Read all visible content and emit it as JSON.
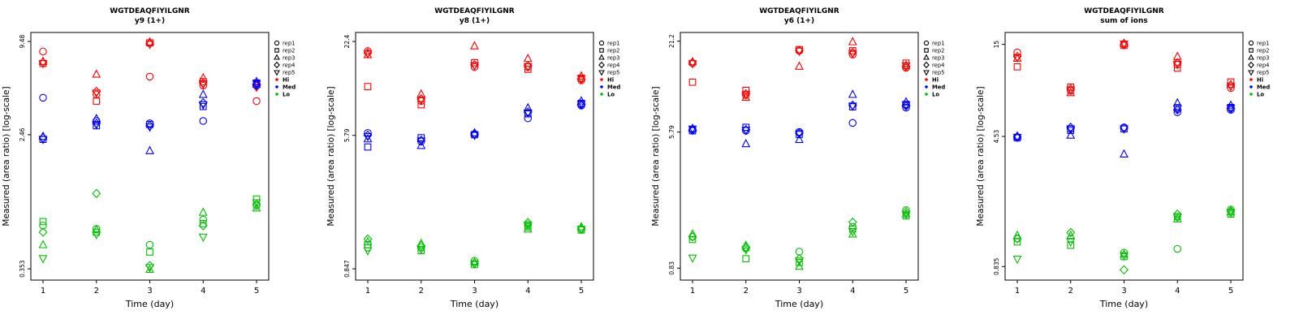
{
  "legend": {
    "rep_labels": [
      "rep1",
      "rep2",
      "rep3",
      "rep4",
      "rep5"
    ],
    "rep_marker_icons": [
      "circle-icon",
      "square-icon",
      "triangle-up-icon",
      "diamond-icon",
      "triangle-down-icon"
    ],
    "group_labels": [
      "Hi",
      "Med",
      "Lo"
    ],
    "group_colors": [
      "#ff0000",
      "#0000ff",
      "#00c000"
    ]
  },
  "colors": {
    "hi": "#ff0000",
    "med": "#0000ff",
    "lo": "#00c000",
    "axis": "#000000",
    "background": "#ffffff"
  },
  "chart_data": [
    {
      "type": "scatter",
      "title": "WGTDEAQFIYILGNR",
      "subtitle": "y9 (1+)",
      "xlabel": "Time (day)",
      "ylabel": "Measured (area ratio) [log-scale]",
      "x_ticks": [
        1,
        2,
        3,
        4,
        5
      ],
      "y_ticks": [
        0.353,
        2.46,
        9.48
      ],
      "ylim": [
        0.3,
        10.8
      ],
      "log_y": true,
      "legend_position": "right",
      "grid": false,
      "series": [
        {
          "name": "Hi",
          "color": "#ff0000",
          "values_by_day": [
            [
              8.2,
              6.9,
              7.1,
              7.0,
              6.9
            ],
            [
              4.4,
              4.0,
              5.9,
              4.6,
              4.5
            ],
            [
              5.7,
              9.3,
              9.4,
              9.2,
              9.1
            ],
            [
              5.0,
              5.3,
              5.6,
              5.2,
              5.1
            ],
            [
              4.0,
              5.2,
              5.1,
              5.0,
              4.9
            ]
          ]
        },
        {
          "name": "Med",
          "color": "#0000ff",
          "values_by_day": [
            [
              4.2,
              2.3,
              2.4,
              2.35,
              2.3
            ],
            [
              3.0,
              2.8,
              3.1,
              2.9,
              2.85
            ],
            [
              2.9,
              2.85,
              1.95,
              2.8,
              2.75
            ],
            [
              3.0,
              3.7,
              4.4,
              3.9,
              3.8
            ],
            [
              5.0,
              5.2,
              5.3,
              5.1,
              5.15
            ]
          ]
        },
        {
          "name": "Lo",
          "color": "#00c000",
          "values_by_day": [
            [
              0.66,
              0.7,
              0.5,
              0.6,
              0.41
            ],
            [
              0.63,
              0.6,
              0.62,
              1.05,
              0.58
            ],
            [
              0.5,
              0.45,
              0.35,
              0.37,
              0.36
            ],
            [
              0.72,
              0.68,
              0.8,
              0.66,
              0.56
            ],
            [
              0.88,
              0.97,
              0.85,
              0.9,
              0.92
            ]
          ]
        }
      ]
    },
    {
      "type": "scatter",
      "title": "WGTDEAQFIYILGNR",
      "subtitle": "y8 (1+)",
      "xlabel": "Time (day)",
      "ylabel": "Measured (area ratio) [log-scale]",
      "x_ticks": [
        1,
        2,
        3,
        4,
        5
      ],
      "y_ticks": [
        0.847,
        5.79,
        22.4
      ],
      "ylim": [
        0.72,
        25.5
      ],
      "log_y": true,
      "legend_position": "right",
      "grid": false,
      "series": [
        {
          "name": "Hi",
          "color": "#ff0000",
          "values_by_day": [
            [
              19.5,
              11.7,
              18.5,
              19.0,
              18.8
            ],
            [
              9.5,
              9.0,
              10.5,
              9.8,
              9.6
            ],
            [
              15.5,
              16.5,
              21.0,
              16.0,
              15.8
            ],
            [
              15.5,
              15.0,
              17.5,
              15.8,
              15.6
            ],
            [
              12.8,
              13.2,
              13.6,
              13.0,
              13.1
            ]
          ]
        },
        {
          "name": "Med",
          "color": "#0000ff",
          "values_by_day": [
            [
              6.0,
              4.9,
              5.5,
              5.8,
              5.7
            ],
            [
              5.3,
              5.6,
              5.0,
              5.4,
              5.35
            ],
            [
              5.9,
              5.85,
              6.0,
              5.9,
              5.8
            ],
            [
              7.4,
              7.9,
              8.6,
              8.1,
              8.0
            ],
            [
              8.9,
              9.2,
              9.5,
              9.0,
              9.1
            ]
          ]
        },
        {
          "name": "Lo",
          "color": "#00c000",
          "values_by_day": [
            [
              1.15,
              1.2,
              1.25,
              1.3,
              1.1
            ],
            [
              1.15,
              1.1,
              1.22,
              1.18,
              1.12
            ],
            [
              0.95,
              0.9,
              0.93,
              0.92,
              0.91
            ],
            [
              1.6,
              1.55,
              1.5,
              1.65,
              1.58
            ],
            [
              1.5,
              1.48,
              1.55,
              1.52,
              1.5
            ]
          ]
        }
      ]
    },
    {
      "type": "scatter",
      "title": "WGTDEAQFIYILGNR",
      "subtitle": "y6 (1+)",
      "xlabel": "Time (day)",
      "ylabel": "Measured (area ratio) [log-scale]",
      "x_ticks": [
        1,
        2,
        3,
        4,
        5
      ],
      "y_ticks": [
        0.83,
        5.79,
        21.2
      ],
      "ylim": [
        0.7,
        24.0
      ],
      "log_y": true,
      "legend_position": "right",
      "grid": false,
      "series": [
        {
          "name": "Hi",
          "color": "#ff0000",
          "values_by_day": [
            [
              15.5,
              11.8,
              15.8,
              15.6,
              15.4
            ],
            [
              9.8,
              10.5,
              9.5,
              10.0,
              9.9
            ],
            [
              18.5,
              18.8,
              14.8,
              18.6,
              18.4
            ],
            [
              17.5,
              18.5,
              21.0,
              18.0,
              17.8
            ],
            [
              14.5,
              15.5,
              15.0,
              14.8,
              14.9
            ]
          ]
        },
        {
          "name": "Med",
          "color": "#0000ff",
          "values_by_day": [
            [
              6.0,
              5.9,
              6.1,
              5.95,
              6.05
            ],
            [
              5.9,
              6.2,
              4.9,
              6.0,
              5.95
            ],
            [
              5.8,
              5.6,
              5.2,
              5.7,
              5.65
            ],
            [
              6.6,
              8.3,
              9.9,
              8.5,
              8.4
            ],
            [
              8.2,
              8.6,
              8.9,
              8.4,
              8.5
            ]
          ]
        },
        {
          "name": "Lo",
          "color": "#00c000",
          "values_by_day": [
            [
              1.3,
              1.25,
              1.35,
              1.3,
              0.96
            ],
            [
              1.1,
              0.95,
              1.15,
              1.12,
              1.08
            ],
            [
              1.05,
              0.9,
              0.85,
              0.95,
              0.92
            ],
            [
              1.5,
              1.45,
              1.35,
              1.6,
              1.4
            ],
            [
              1.9,
              1.75,
              1.8,
              1.85,
              1.78
            ]
          ]
        }
      ]
    },
    {
      "type": "scatter",
      "title": "WGTDEAQFIYILGNR",
      "subtitle": "sum of ions",
      "xlabel": "Time (day)",
      "ylabel": "Measured (area ratio) [log-scale]",
      "x_ticks": [
        1,
        2,
        3,
        4,
        5
      ],
      "y_ticks": [
        0.835,
        4.53,
        15
      ],
      "ylim": [
        0.7,
        17.5
      ],
      "log_y": true,
      "legend_position": "right",
      "grid": false,
      "series": [
        {
          "name": "Hi",
          "color": "#ff0000",
          "values_by_day": [
            [
              13.5,
              11.2,
              12.5,
              12.8,
              12.6
            ],
            [
              8.2,
              8.6,
              8.0,
              8.4,
              8.3
            ],
            [
              15.0,
              14.8,
              15.2,
              14.9,
              15.1
            ],
            [
              11.5,
              11.0,
              12.8,
              11.8,
              11.6
            ],
            [
              8.5,
              9.2,
              8.9,
              8.8,
              8.7
            ]
          ]
        },
        {
          "name": "Med",
          "color": "#0000ff",
          "values_by_day": [
            [
              4.5,
              4.45,
              4.55,
              4.5,
              4.48
            ],
            [
              5.0,
              4.9,
              4.6,
              5.1,
              5.0
            ],
            [
              5.1,
              5.0,
              3.6,
              5.05,
              5.0
            ],
            [
              6.2,
              6.6,
              7.0,
              6.4,
              6.5
            ],
            [
              6.4,
              6.6,
              6.8,
              6.5,
              6.55
            ]
          ]
        },
        {
          "name": "Lo",
          "color": "#00c000",
          "values_by_day": [
            [
              1.2,
              1.15,
              1.25,
              1.2,
              0.92
            ],
            [
              1.2,
              1.1,
              1.25,
              1.3,
              1.15
            ],
            [
              1.0,
              0.95,
              0.98,
              0.8,
              0.96
            ],
            [
              1.05,
              1.6,
              1.55,
              1.65,
              1.58
            ],
            [
              1.75,
              1.65,
              1.7,
              1.72,
              1.68
            ]
          ]
        }
      ]
    }
  ]
}
